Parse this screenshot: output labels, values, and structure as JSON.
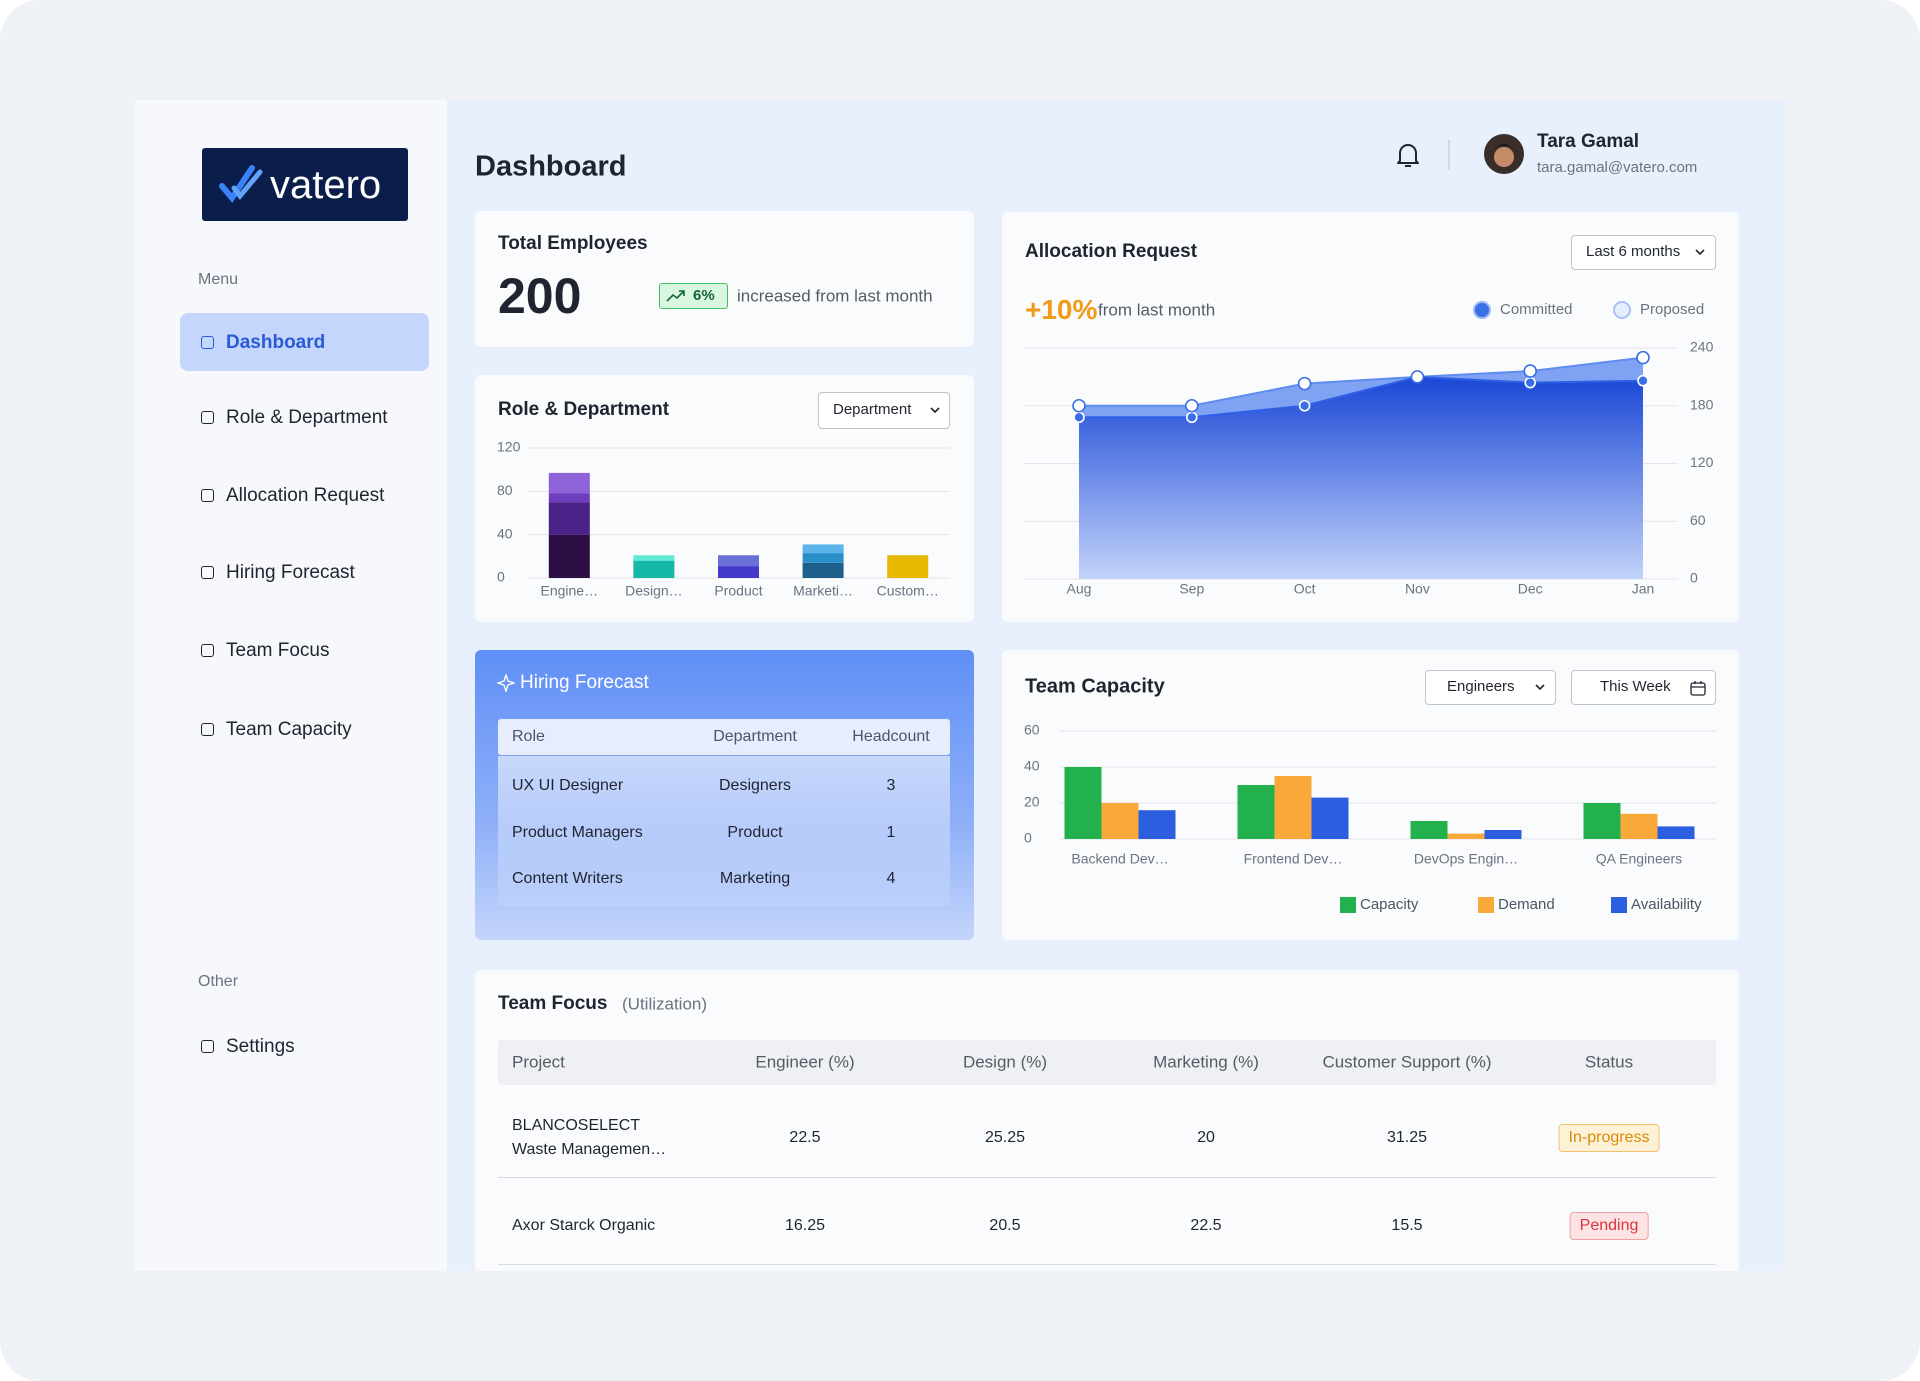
{
  "sidebar": {
    "logo": "vatero",
    "menu_label": "Menu",
    "menu": [
      "Dashboard",
      "Role & Department",
      "Allocation Request",
      "Hiring Forecast",
      "Team Focus",
      "Team Capacity"
    ],
    "other_label": "Other",
    "other": [
      "Settings"
    ]
  },
  "header": {
    "title": "Dashboard",
    "user_name": "Tara Gamal",
    "user_email": "tara.gamal@vatero.com"
  },
  "total_employees": {
    "title": "Total Employees",
    "value": 200,
    "change": "6%",
    "change_text": "increased from last month"
  },
  "role_department": {
    "title": "Role & Department",
    "filter": "Department",
    "chart_data": {
      "type": "bar",
      "stacked": true,
      "categories": [
        "Engine…",
        "Design…",
        "Product",
        "Marketi…",
        "Custom…"
      ],
      "series": [
        {
          "colors": [
            "#2b0f45",
            "#14b8a6",
            "#4338ca",
            "#1e5f8c",
            "#e6b800"
          ],
          "values": [
            40,
            16,
            11,
            14,
            21
          ]
        },
        {
          "colors": [
            "#4a2288",
            "#5eead4",
            "#6b6fd8",
            "#2a8fc9",
            null
          ],
          "values": [
            30,
            5,
            10,
            9,
            null
          ]
        },
        {
          "colors": [
            "#6d3fbf",
            null,
            null,
            "#5bb5ea",
            null
          ],
          "values": [
            8,
            null,
            null,
            8,
            null
          ]
        },
        {
          "colors": [
            "#8e62d9",
            null,
            null,
            null,
            null
          ],
          "values": [
            19,
            null,
            null,
            null,
            null
          ]
        }
      ],
      "ylim": [
        0,
        120
      ],
      "yticks": [
        0,
        40,
        80,
        120
      ],
      "grid": true
    }
  },
  "allocation_request": {
    "title": "Allocation Request",
    "filter": "Last 6 months",
    "change": "+10%",
    "change_text": "from last month",
    "chart_data": {
      "type": "area",
      "x": [
        "Aug",
        "Sep",
        "Oct",
        "Nov",
        "Dec",
        "Jan"
      ],
      "series": [
        {
          "name": "Committed",
          "color": "#1a47d6",
          "values": [
            168,
            168,
            180,
            210,
            204,
            206
          ]
        },
        {
          "name": "Proposed",
          "color": "#7fa3f2",
          "values": [
            180,
            180,
            203,
            210,
            216,
            230
          ]
        }
      ],
      "ylim": [
        0,
        240
      ],
      "yticks": [
        0,
        60,
        120,
        180,
        240
      ],
      "y_axis_side": "right",
      "grid": true
    }
  },
  "hiring_forecast": {
    "title": "Hiring Forecast",
    "columns": [
      "Role",
      "Department",
      "Headcount"
    ],
    "rows": [
      [
        "UX UI Designer",
        "Designers",
        3
      ],
      [
        "Product Managers",
        "Product",
        1
      ],
      [
        "Content Writers",
        "Marketing",
        4
      ]
    ]
  },
  "team_capacity": {
    "title": "Team Capacity",
    "filters": [
      "Engineers",
      "This Week"
    ],
    "chart_data": {
      "type": "grouped_bar",
      "categories": [
        "Backend Dev…",
        "Frontend Dev…",
        "DevOps Engin…",
        "QA Engineers"
      ],
      "series": [
        {
          "name": "Capacity",
          "color": "#22b14c",
          "values": [
            40,
            30,
            10,
            20
          ]
        },
        {
          "name": "Demand",
          "color": "#f9a93a",
          "values": [
            20,
            35,
            3,
            14
          ]
        },
        {
          "name": "Availability",
          "color": "#2b5fe0",
          "values": [
            16,
            23,
            5,
            7
          ]
        }
      ],
      "ylim": [
        0,
        60
      ],
      "yticks": [
        0,
        20,
        40,
        60
      ],
      "grid": true
    }
  },
  "team_focus": {
    "title": "Team Focus",
    "subtitle": "(Utilization)",
    "columns": [
      "Project",
      "Engineer (%)",
      "Design (%)",
      "Marketing (%)",
      "Customer Support (%)",
      "Status"
    ],
    "rows": [
      [
        "BLANCOSELECT Waste Managemen…",
        22.5,
        25.25,
        20,
        31.25,
        "In-progress"
      ],
      [
        "Axor Starck Organic",
        16.25,
        20.5,
        22.5,
        15.5,
        "Pending"
      ]
    ]
  }
}
